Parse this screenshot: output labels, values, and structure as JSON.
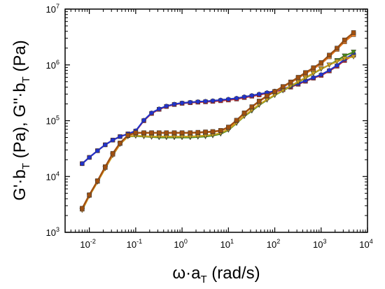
{
  "chart_data": {
    "type": "scatter",
    "xscale": "log",
    "yscale": "log",
    "xlim": [
      0.003,
      10000
    ],
    "ylim": [
      1000,
      10000000
    ],
    "grid": false,
    "xlabel": "ω·a_T (rad/s)",
    "ylabel": "G'·b_T (Pa), G''·b_T (Pa)",
    "xlabel_parts": {
      "base": "ω·a",
      "sub": "T",
      "rest": " (rad/s)"
    },
    "ylabel_parts": {
      "a": "G'·b",
      "sub1": "T",
      "b": " (Pa), G''·b",
      "sub2": "T",
      "c": " (Pa)"
    },
    "x_ticks": [
      {
        "value": 0.01,
        "base": "10",
        "exp": "-2"
      },
      {
        "value": 0.1,
        "base": "10",
        "exp": "-1"
      },
      {
        "value": 1,
        "base": "10",
        "exp": "0"
      },
      {
        "value": 10,
        "base": "10",
        "exp": "1"
      },
      {
        "value": 100,
        "base": "10",
        "exp": "2"
      },
      {
        "value": 1000,
        "base": "10",
        "exp": "3"
      },
      {
        "value": 10000,
        "base": "10",
        "exp": "4"
      }
    ],
    "y_ticks": [
      {
        "value": 1000,
        "base": "10",
        "exp": "3"
      },
      {
        "value": 10000,
        "base": "10",
        "exp": "4"
      },
      {
        "value": 100000,
        "base": "10",
        "exp": "5"
      },
      {
        "value": 1000000,
        "base": "10",
        "exp": "6"
      },
      {
        "value": 10000000,
        "base": "10",
        "exp": "7"
      }
    ],
    "series": [
      {
        "color": "#d62020",
        "marker": "square",
        "x": [
          0.007,
          0.01,
          0.015,
          0.022,
          0.032,
          0.046,
          0.068,
          0.1,
          0.15,
          0.22,
          0.32,
          0.46,
          0.68,
          1,
          1.5,
          2.2,
          3.2,
          4.6,
          6.8,
          10,
          15,
          22,
          32,
          46,
          68,
          100,
          150,
          220,
          320,
          460,
          680,
          1000,
          1500,
          2200,
          3200,
          5000
        ],
        "y": [
          17000,
          22000,
          29000,
          37000,
          45000,
          52000,
          58000,
          65000,
          100000,
          135000,
          160000,
          180000,
          195000,
          205000,
          210000,
          215000,
          218000,
          222000,
          228000,
          235000,
          245000,
          260000,
          275000,
          290000,
          310000,
          330000,
          360000,
          400000,
          450000,
          510000,
          580000,
          650000,
          780000,
          950000,
          1200000,
          1500000
        ]
      },
      {
        "color": "#2233cc",
        "marker": "circle",
        "x": [
          0.007,
          0.01,
          0.015,
          0.022,
          0.032,
          0.046,
          0.068,
          0.1,
          0.15,
          0.22,
          0.32,
          0.46,
          0.68,
          1,
          1.5,
          2.2,
          3.2,
          4.6,
          6.8,
          10,
          15,
          22,
          32,
          46,
          68,
          100,
          150,
          220,
          320,
          460,
          680,
          1000,
          1500,
          2200,
          3200,
          5000
        ],
        "y": [
          17000,
          22000,
          29000,
          37000,
          45000,
          52000,
          58000,
          66000,
          102000,
          138000,
          163000,
          183000,
          198000,
          208000,
          214000,
          219000,
          223000,
          228000,
          235000,
          243000,
          253000,
          268000,
          283000,
          300000,
          318000,
          340000,
          370000,
          410000,
          460000,
          520000,
          590000,
          670000,
          800000,
          980000,
          1250000,
          1600000
        ]
      },
      {
        "color": "#4a8a1a",
        "marker": "triangle-down",
        "x": [
          0.007,
          0.01,
          0.015,
          0.022,
          0.032,
          0.046,
          0.068,
          0.1,
          0.15,
          0.22,
          0.32,
          0.46,
          0.68,
          1,
          1.5,
          2.2,
          3.2,
          4.6,
          6.8,
          10,
          15,
          22,
          32,
          46,
          68,
          100,
          150,
          220,
          320,
          460,
          680,
          1000,
          1500,
          2200,
          3200,
          5000
        ],
        "y": [
          2500,
          4500,
          8000,
          14000,
          24000,
          38000,
          52000,
          53000,
          52000,
          51000,
          50000,
          50000,
          50000,
          50000,
          50000,
          51000,
          52000,
          54000,
          58000,
          68000,
          90000,
          120000,
          150000,
          190000,
          235000,
          285000,
          345000,
          410000,
          490000,
          580000,
          700000,
          840000,
          1000000,
          1200000,
          1450000,
          1700000
        ]
      },
      {
        "color": "#c8a020",
        "marker": "triangle-down",
        "x": [
          0.007,
          0.01,
          0.015,
          0.022,
          0.032,
          0.046,
          0.068,
          0.1,
          0.15,
          0.22,
          0.32,
          0.46,
          0.68,
          1,
          1.5,
          2.2,
          3.2,
          4.6,
          6.8,
          10,
          15,
          22,
          32,
          46,
          68,
          100,
          150,
          220,
          320,
          460,
          680,
          1000,
          1500,
          2200,
          3200,
          5000
        ],
        "y": [
          2500,
          4500,
          8000,
          14000,
          24000,
          38000,
          52000,
          54000,
          53000,
          52000,
          52000,
          52000,
          52000,
          52000,
          52000,
          53000,
          54000,
          56000,
          60000,
          70000,
          92000,
          122000,
          155000,
          195000,
          240000,
          290000,
          350000,
          420000,
          500000,
          590000,
          710000,
          850000,
          1000000,
          1150000,
          1300000,
          1400000
        ]
      },
      {
        "color": "#e87a20",
        "marker": "square",
        "x": [
          0.007,
          0.01,
          0.015,
          0.022,
          0.032,
          0.046,
          0.068,
          0.1,
          0.15,
          0.22,
          0.32,
          0.46,
          0.68,
          1,
          1.5,
          2.2,
          3.2,
          4.6,
          6.8,
          10,
          15,
          22,
          32,
          46,
          68,
          100,
          150,
          220,
          320,
          460,
          680,
          1000,
          1500,
          2200,
          3200,
          5000
        ],
        "y": [
          2600,
          4600,
          8200,
          14500,
          25000,
          39000,
          54000,
          60000,
          60000,
          60000,
          60000,
          60000,
          60000,
          60000,
          60000,
          61000,
          62000,
          63000,
          66000,
          75000,
          100000,
          135000,
          175000,
          220000,
          275000,
          330000,
          400000,
          480000,
          580000,
          700000,
          850000,
          1050000,
          1400000,
          1900000,
          2600000,
          3500000
        ]
      },
      {
        "color": "#a05010",
        "marker": "square",
        "x": [
          0.007,
          0.01,
          0.015,
          0.022,
          0.032,
          0.046,
          0.068,
          0.1,
          0.15,
          0.22,
          0.32,
          0.46,
          0.68,
          1,
          1.5,
          2.2,
          3.2,
          4.6,
          6.8,
          10,
          15,
          22,
          32,
          46,
          68,
          100,
          150,
          220,
          320,
          460,
          680,
          1000,
          1500,
          2200,
          3200,
          5000
        ],
        "y": [
          2700,
          4700,
          8400,
          15000,
          26000,
          40000,
          55000,
          61000,
          61000,
          61000,
          61000,
          61000,
          61000,
          61000,
          61000,
          62000,
          63000,
          64000,
          67000,
          77000,
          102000,
          138000,
          178000,
          225000,
          280000,
          335000,
          410000,
          495000,
          600000,
          730000,
          890000,
          1100000,
          1500000,
          2000000,
          2800000,
          3800000
        ]
      }
    ]
  }
}
